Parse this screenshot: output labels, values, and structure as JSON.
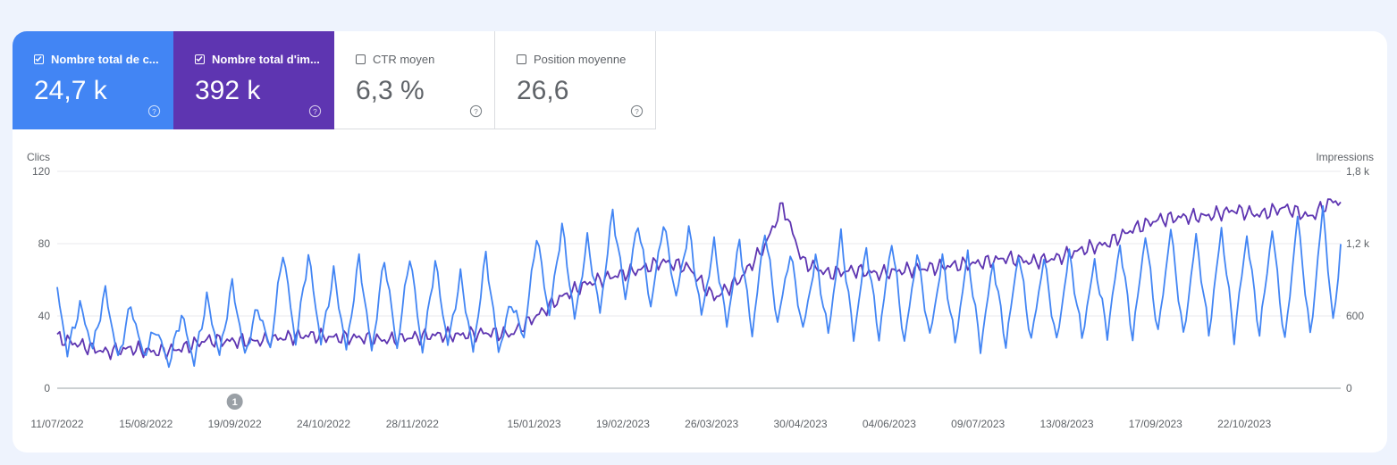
{
  "metrics": [
    {
      "label": "Nombre total de c...",
      "value": "24,7 k",
      "checked": true,
      "help_icon": "help-circle-icon"
    },
    {
      "label": "Nombre total d'im...",
      "value": "392 k",
      "checked": true,
      "help_icon": "help-circle-icon"
    },
    {
      "label": "CTR moyen",
      "value": "6,3 %",
      "checked": false,
      "help_icon": "help-circle-icon"
    },
    {
      "label": "Position moyenne",
      "value": "26,6",
      "checked": false,
      "help_icon": "help-circle-icon"
    }
  ],
  "colors": {
    "clicks": "#4285f4",
    "impressions": "#5e35b1",
    "background": "#eef3fd"
  },
  "annotation": {
    "label": "1",
    "x": "2022-09-19"
  },
  "chart_data": {
    "type": "line",
    "x_start": "2022-07-11",
    "x_end": "2023-11-29",
    "xlabel": "",
    "ticks": [
      "11/07/2022",
      "15/08/2022",
      "19/09/2022",
      "24/10/2022",
      "28/11/2022",
      "15/01/2023",
      "19/02/2023",
      "26/03/2023",
      "30/04/2023",
      "04/06/2023",
      "09/07/2023",
      "13/08/2023",
      "17/09/2023",
      "22/10/2023"
    ],
    "y_left": {
      "label": "Clics",
      "ticks": [
        "0",
        "40",
        "80",
        "120"
      ],
      "ylim": [
        0,
        120
      ]
    },
    "y_right": {
      "label": "Impressions",
      "ticks": [
        "0",
        "600",
        "1,2 k",
        "1,8 k"
      ],
      "ylim": [
        0,
        1800
      ]
    },
    "grid": true,
    "series": [
      {
        "name": "Clics",
        "axis": "left",
        "color": "#4285f4",
        "anchors": [
          [
            "2022-07-11",
            54
          ],
          [
            "2022-07-15",
            20
          ],
          [
            "2022-07-20",
            46
          ],
          [
            "2022-07-25",
            22
          ],
          [
            "2022-07-30",
            54
          ],
          [
            "2022-08-04",
            16
          ],
          [
            "2022-08-09",
            46
          ],
          [
            "2022-08-14",
            18
          ],
          [
            "2022-08-19",
            33
          ],
          [
            "2022-08-24",
            13
          ],
          [
            "2022-08-29",
            41
          ],
          [
            "2022-09-03",
            14
          ],
          [
            "2022-09-08",
            50
          ],
          [
            "2022-09-13",
            18
          ],
          [
            "2022-09-18",
            58
          ],
          [
            "2022-09-23",
            18
          ],
          [
            "2022-09-28",
            45
          ],
          [
            "2022-10-03",
            22
          ],
          [
            "2022-10-08",
            76
          ],
          [
            "2022-10-13",
            25
          ],
          [
            "2022-10-18",
            74
          ],
          [
            "2022-10-23",
            25
          ],
          [
            "2022-10-28",
            64
          ],
          [
            "2022-11-02",
            21
          ],
          [
            "2022-11-07",
            72
          ],
          [
            "2022-11-12",
            20
          ],
          [
            "2022-11-17",
            72
          ],
          [
            "2022-11-22",
            22
          ],
          [
            "2022-11-27",
            74
          ],
          [
            "2022-12-02",
            20
          ],
          [
            "2022-12-07",
            70
          ],
          [
            "2022-12-12",
            24
          ],
          [
            "2022-12-17",
            62
          ],
          [
            "2022-12-22",
            20
          ],
          [
            "2022-12-27",
            74
          ],
          [
            "2023-01-01",
            20
          ],
          [
            "2023-01-06",
            48
          ],
          [
            "2023-01-11",
            28
          ],
          [
            "2023-01-16",
            85
          ],
          [
            "2023-01-21",
            40
          ],
          [
            "2023-01-26",
            90
          ],
          [
            "2023-01-31",
            38
          ],
          [
            "2023-02-05",
            82
          ],
          [
            "2023-02-10",
            42
          ],
          [
            "2023-02-15",
            98
          ],
          [
            "2023-02-20",
            50
          ],
          [
            "2023-02-25",
            92
          ],
          [
            "2023-03-02",
            45
          ],
          [
            "2023-03-07",
            92
          ],
          [
            "2023-03-12",
            50
          ],
          [
            "2023-03-17",
            88
          ],
          [
            "2023-03-22",
            40
          ],
          [
            "2023-03-27",
            80
          ],
          [
            "2023-04-01",
            35
          ],
          [
            "2023-04-06",
            82
          ],
          [
            "2023-04-11",
            30
          ],
          [
            "2023-04-16",
            88
          ],
          [
            "2023-04-21",
            36
          ],
          [
            "2023-04-26",
            75
          ],
          [
            "2023-05-01",
            32
          ],
          [
            "2023-05-06",
            72
          ],
          [
            "2023-05-11",
            30
          ],
          [
            "2023-05-16",
            85
          ],
          [
            "2023-05-21",
            28
          ],
          [
            "2023-05-26",
            78
          ],
          [
            "2023-05-31",
            28
          ],
          [
            "2023-06-05",
            82
          ],
          [
            "2023-06-10",
            25
          ],
          [
            "2023-06-15",
            75
          ],
          [
            "2023-06-20",
            28
          ],
          [
            "2023-06-25",
            72
          ],
          [
            "2023-06-30",
            25
          ],
          [
            "2023-07-05",
            74
          ],
          [
            "2023-07-10",
            22
          ],
          [
            "2023-07-15",
            70
          ],
          [
            "2023-07-20",
            24
          ],
          [
            "2023-07-25",
            75
          ],
          [
            "2023-07-30",
            26
          ],
          [
            "2023-08-04",
            72
          ],
          [
            "2023-08-09",
            25
          ],
          [
            "2023-08-14",
            75
          ],
          [
            "2023-08-19",
            28
          ],
          [
            "2023-08-24",
            70
          ],
          [
            "2023-08-29",
            30
          ],
          [
            "2023-09-03",
            80
          ],
          [
            "2023-09-08",
            28
          ],
          [
            "2023-09-13",
            85
          ],
          [
            "2023-09-18",
            30
          ],
          [
            "2023-09-23",
            88
          ],
          [
            "2023-09-28",
            28
          ],
          [
            "2023-10-03",
            84
          ],
          [
            "2023-10-08",
            30
          ],
          [
            "2023-10-13",
            88
          ],
          [
            "2023-10-18",
            28
          ],
          [
            "2023-10-23",
            85
          ],
          [
            "2023-10-28",
            30
          ],
          [
            "2023-11-02",
            88
          ],
          [
            "2023-11-07",
            25
          ],
          [
            "2023-11-12",
            95
          ],
          [
            "2023-11-17",
            28
          ],
          [
            "2023-11-22",
            100
          ],
          [
            "2023-11-26",
            35
          ],
          [
            "2023-11-29",
            78
          ]
        ]
      },
      {
        "name": "Impressions",
        "axis": "right",
        "color": "#5e35b1",
        "anchors": [
          [
            "2022-07-11",
            420
          ],
          [
            "2022-07-20",
            360
          ],
          [
            "2022-07-30",
            300
          ],
          [
            "2022-08-09",
            330
          ],
          [
            "2022-08-19",
            300
          ],
          [
            "2022-08-29",
            330
          ],
          [
            "2022-09-08",
            400
          ],
          [
            "2022-09-18",
            390
          ],
          [
            "2022-09-28",
            390
          ],
          [
            "2022-10-08",
            420
          ],
          [
            "2022-10-18",
            440
          ],
          [
            "2022-10-28",
            420
          ],
          [
            "2022-11-07",
            420
          ],
          [
            "2022-11-17",
            400
          ],
          [
            "2022-11-27",
            420
          ],
          [
            "2022-12-07",
            440
          ],
          [
            "2022-12-17",
            440
          ],
          [
            "2022-12-27",
            460
          ],
          [
            "2023-01-06",
            450
          ],
          [
            "2023-01-16",
            600
          ],
          [
            "2023-01-26",
            760
          ],
          [
            "2023-02-05",
            870
          ],
          [
            "2023-02-15",
            930
          ],
          [
            "2023-02-25",
            980
          ],
          [
            "2023-03-07",
            1050
          ],
          [
            "2023-03-17",
            1000
          ],
          [
            "2023-03-27",
            750
          ],
          [
            "2023-04-06",
            900
          ],
          [
            "2023-04-16",
            1180
          ],
          [
            "2023-04-23",
            1520
          ],
          [
            "2023-05-01",
            1050
          ],
          [
            "2023-05-11",
            950
          ],
          [
            "2023-05-21",
            980
          ],
          [
            "2023-05-31",
            950
          ],
          [
            "2023-06-10",
            980
          ],
          [
            "2023-06-20",
            1000
          ],
          [
            "2023-06-30",
            1020
          ],
          [
            "2023-07-10",
            1040
          ],
          [
            "2023-07-20",
            1080
          ],
          [
            "2023-07-30",
            1050
          ],
          [
            "2023-08-09",
            1080
          ],
          [
            "2023-08-19",
            1150
          ],
          [
            "2023-08-29",
            1200
          ],
          [
            "2023-09-08",
            1320
          ],
          [
            "2023-09-18",
            1400
          ],
          [
            "2023-09-28",
            1420
          ],
          [
            "2023-10-08",
            1430
          ],
          [
            "2023-10-18",
            1480
          ],
          [
            "2023-10-28",
            1440
          ],
          [
            "2023-11-07",
            1500
          ],
          [
            "2023-11-17",
            1420
          ],
          [
            "2023-11-25",
            1550
          ],
          [
            "2023-11-29",
            1550
          ]
        ]
      }
    ]
  }
}
